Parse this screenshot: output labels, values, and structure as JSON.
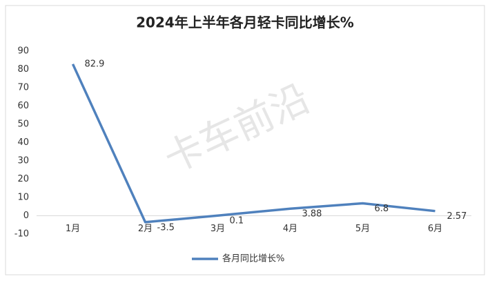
{
  "chart_data": {
    "type": "line",
    "title": "2024年上半年各月轻卡同比增长%",
    "watermark": "卡车前沿",
    "categories": [
      "1月",
      "2月",
      "3月",
      "4月",
      "5月",
      "6月"
    ],
    "series": [
      {
        "name": "各月同比增长%",
        "color": "#4f81bd",
        "values": [
          82.9,
          -3.5,
          0.1,
          3.88,
          6.8,
          2.57
        ]
      }
    ],
    "ylim": [
      -10,
      90
    ],
    "yticks": [
      -10,
      0,
      10,
      20,
      30,
      40,
      50,
      60,
      70,
      80,
      90
    ],
    "grid": false,
    "legend": "bottom",
    "data_labels": true
  }
}
